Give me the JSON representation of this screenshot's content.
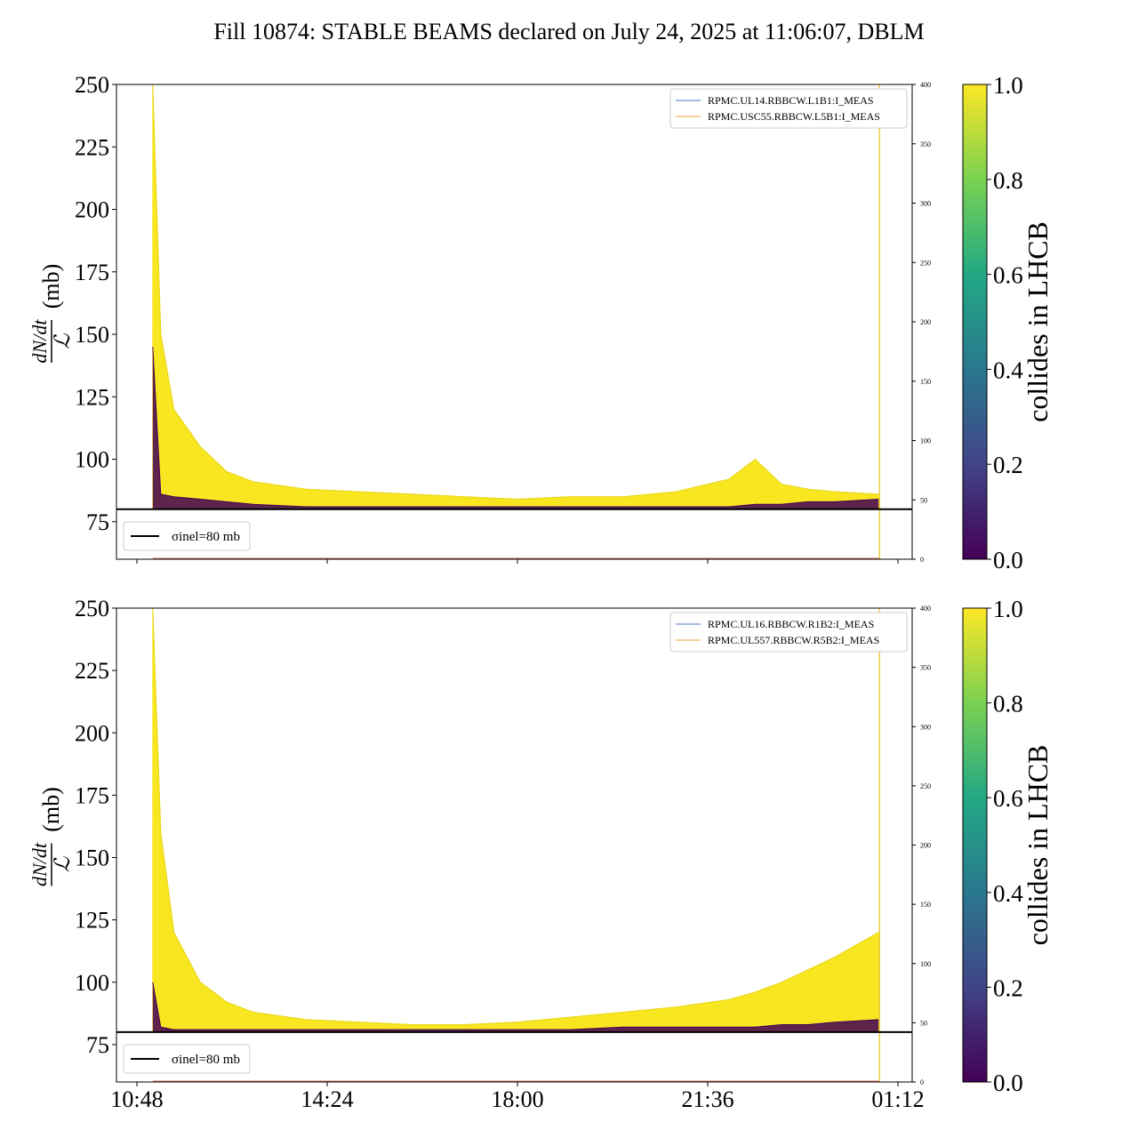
{
  "title": "Fill 10874: STABLE BEAMS declared on July 24, 2025 at 11:06:07, DBLM",
  "colorbar": {
    "label": "collides in LHCB",
    "ticks": [
      "0.0",
      "0.2",
      "0.4",
      "0.6",
      "0.8",
      "1.0"
    ]
  },
  "xaxis": {
    "ticks": [
      "10:48",
      "14:24",
      "18:00",
      "21:36",
      "01:12"
    ]
  },
  "colors": {
    "high": "#f8e621",
    "low": "#440154",
    "sigma": "#000000",
    "blue": "#4c78c8",
    "orange": "#f2a33a"
  },
  "chart_data": [
    {
      "type": "line",
      "ylabel_num": "dN/dt",
      "ylabel_den": "ℒ",
      "ylabel_unit": "(mb)",
      "ylim": [
        60,
        250
      ],
      "yticks": [
        "75",
        "100",
        "125",
        "150",
        "175",
        "200",
        "225",
        "250"
      ],
      "y2lim": [
        0,
        400
      ],
      "y2ticks": [
        "0",
        "50",
        "100",
        "150",
        "200",
        "250",
        "300",
        "350",
        "400"
      ],
      "x_times": [
        "11:06",
        "11:15",
        "11:30",
        "12:00",
        "12:30",
        "13:00",
        "14:00",
        "15:00",
        "16:00",
        "17:00",
        "18:00",
        "19:00",
        "20:00",
        "21:00",
        "22:00",
        "22:30",
        "23:00",
        "23:30",
        "00:00",
        "00:50"
      ],
      "series": [
        {
          "values": [
            250,
            150,
            120,
            105,
            95,
            91,
            88,
            87,
            86,
            85,
            84,
            85,
            85,
            87,
            92,
            100,
            90,
            88,
            87,
            86
          ]
        },
        {
          "values": [
            145,
            86,
            85,
            84,
            83,
            82,
            81,
            81,
            81,
            81,
            81,
            81,
            81,
            81,
            81,
            82,
            82,
            83,
            83,
            84
          ]
        }
      ],
      "sigma_line": {
        "value": 80,
        "label": "σinel=80 mb"
      },
      "legend": [
        "RPMC.UL14.RBBCW.L1B1:I_MEAS",
        "RPMC.USC55.RBBCW.L5B1:I_MEAS"
      ]
    },
    {
      "type": "line",
      "ylabel_num": "dN/dt",
      "ylabel_den": "ℒ",
      "ylabel_unit": "(mb)",
      "ylim": [
        60,
        250
      ],
      "yticks": [
        "75",
        "100",
        "125",
        "150",
        "175",
        "200",
        "225",
        "250"
      ],
      "y2lim": [
        0,
        400
      ],
      "y2ticks": [
        "0",
        "50",
        "100",
        "150",
        "200",
        "250",
        "300",
        "350",
        "400"
      ],
      "x_times": [
        "11:06",
        "11:15",
        "11:30",
        "12:00",
        "12:30",
        "13:00",
        "14:00",
        "15:00",
        "16:00",
        "17:00",
        "18:00",
        "19:00",
        "20:00",
        "21:00",
        "22:00",
        "22:30",
        "23:00",
        "23:30",
        "00:00",
        "00:50"
      ],
      "series": [
        {
          "values": [
            250,
            160,
            120,
            100,
            92,
            88,
            85,
            84,
            83,
            83,
            84,
            86,
            88,
            90,
            93,
            96,
            100,
            105,
            110,
            120
          ]
        },
        {
          "values": [
            100,
            82,
            81,
            81,
            81,
            81,
            81,
            81,
            81,
            81,
            81,
            81,
            82,
            82,
            82,
            82,
            83,
            83,
            84,
            85
          ]
        }
      ],
      "sigma_line": {
        "value": 80,
        "label": "σinel=80 mb"
      },
      "legend": [
        "RPMC.UL16.RBBCW.R1B2:I_MEAS",
        "RPMC.UL557.RBBCW.R5B2:I_MEAS"
      ]
    }
  ]
}
